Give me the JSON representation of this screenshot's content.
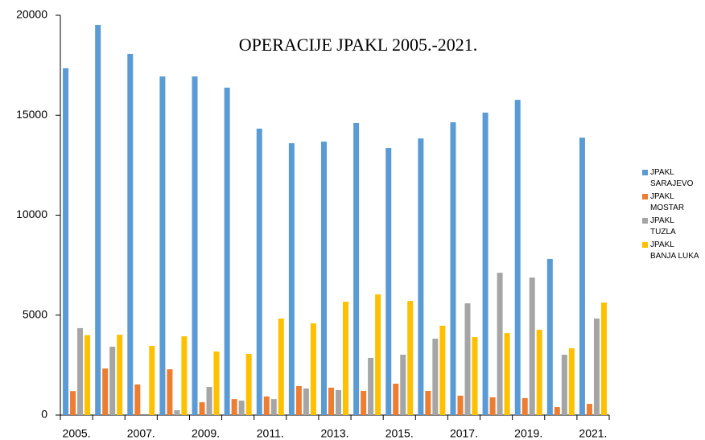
{
  "chart_data": {
    "type": "bar",
    "title": "OPERACIJE JPAKL 2005.-2021.",
    "categories": [
      "2005.",
      null,
      "2007.",
      null,
      "2009.",
      null,
      "2011.",
      null,
      "2013.",
      null,
      "2015.",
      null,
      "2017.",
      null,
      "2019.",
      null,
      "2021."
    ],
    "series": [
      {
        "name": "JPAKL SARAJEVO",
        "color": "#5b9bd5",
        "values": [
          17350,
          19520,
          18070,
          16940,
          16940,
          16380,
          14330,
          13600,
          13680,
          14610,
          13360,
          13840,
          14650,
          15130,
          15770,
          7810,
          13880
        ]
      },
      {
        "name": "JPAKL MOSTAR",
        "color": "#ed7d31",
        "values": [
          1200,
          2330,
          1530,
          2290,
          640,
          800,
          930,
          1450,
          1370,
          1210,
          1570,
          1210,
          970,
          890,
          850,
          400,
          560
        ]
      },
      {
        "name": "JPAKL TUZLA",
        "color": "#a5a5a5",
        "values": [
          4350,
          3420,
          0,
          240,
          1410,
          720,
          800,
          1330,
          1250,
          2860,
          3020,
          3820,
          5590,
          7120,
          6880,
          3020,
          4830
        ]
      },
      {
        "name": "JPAKL BANJA LUKA",
        "color": "#ffc000",
        "values": [
          4000,
          4020,
          3460,
          3940,
          3180,
          3060,
          4830,
          4590,
          5670,
          6040,
          5710,
          4470,
          3900,
          4100,
          4270,
          3340,
          5630
        ]
      }
    ],
    "ylim": [
      0,
      20000
    ],
    "yticks": [
      0,
      5000,
      10000,
      15000,
      20000
    ],
    "grid": false,
    "legend": "right"
  }
}
